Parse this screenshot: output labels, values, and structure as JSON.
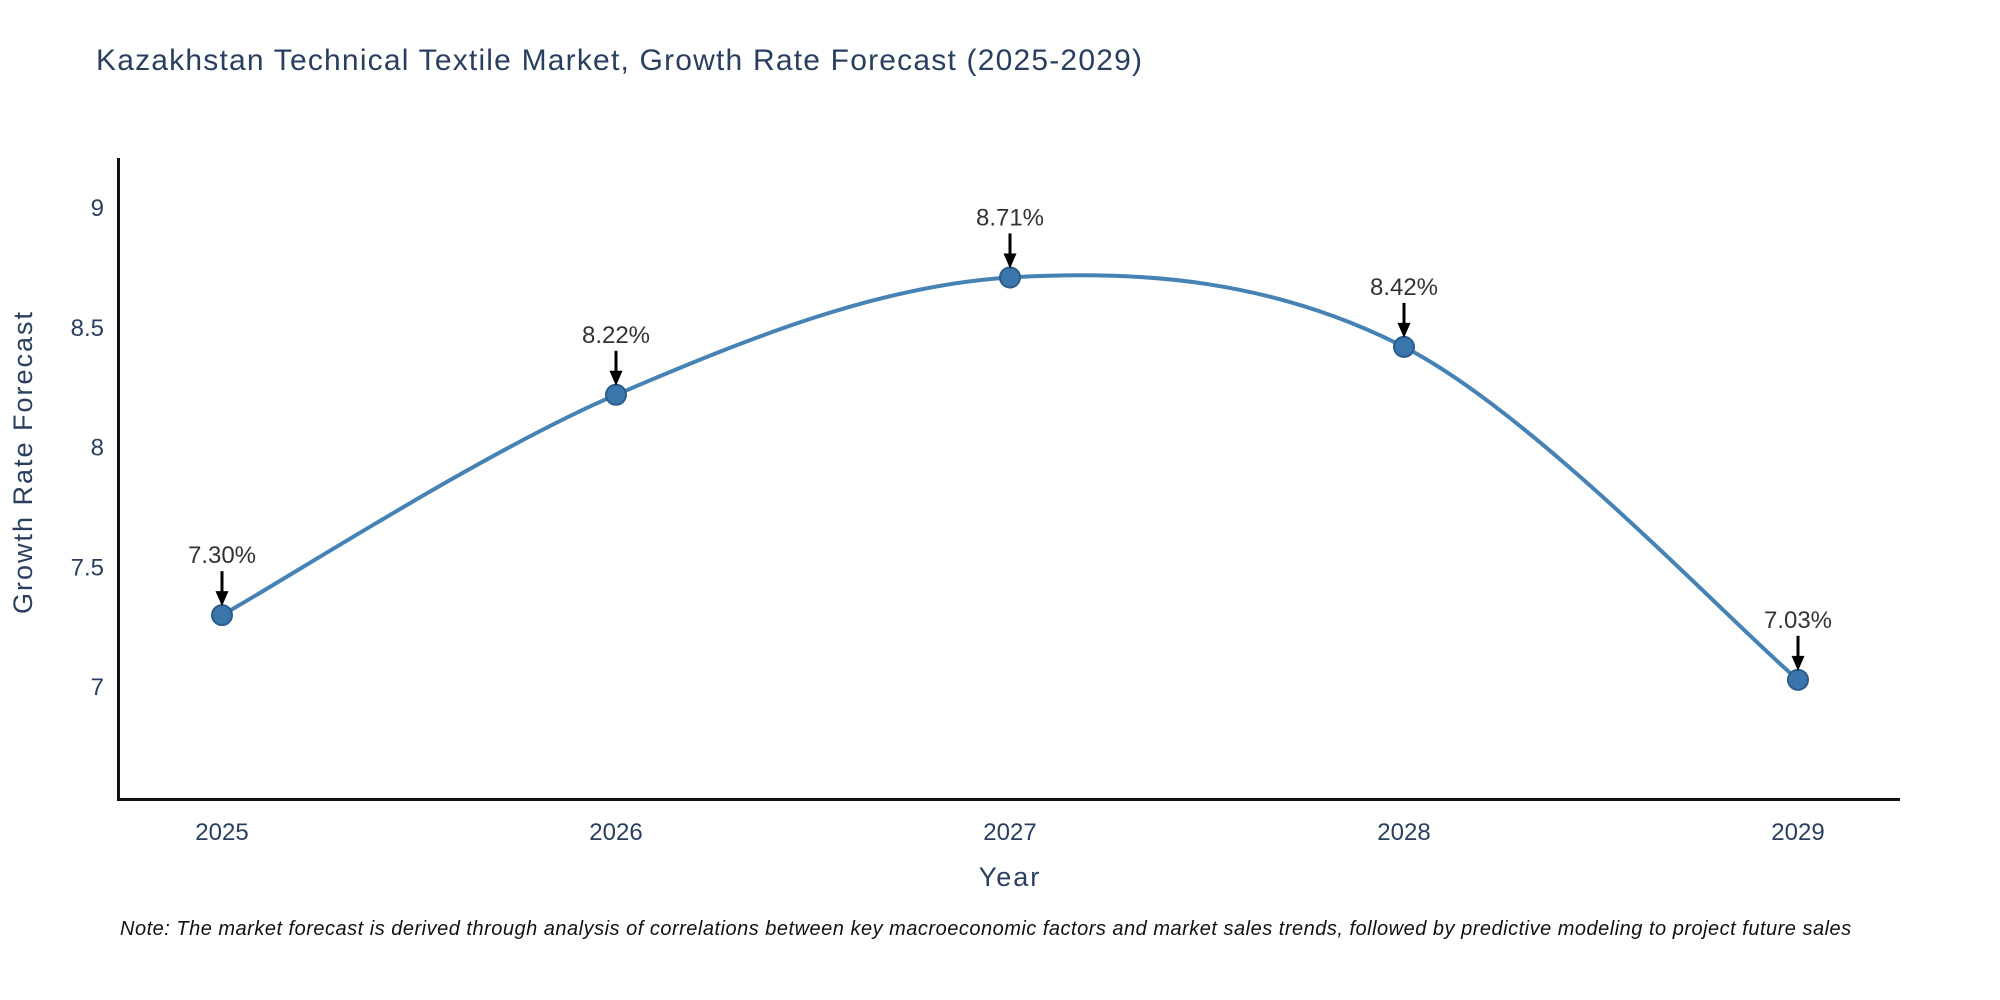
{
  "chart_data": {
    "type": "line",
    "title": "Kazakhstan Technical Textile Market, Growth Rate Forecast (2025-2029)",
    "xlabel": "Year",
    "ylabel": "Growth Rate Forecast",
    "categories": [
      "2025",
      "2026",
      "2027",
      "2028",
      "2029"
    ],
    "series": [
      {
        "name": "Growth Rate Forecast",
        "values": [
          7.3,
          8.22,
          8.71,
          8.42,
          7.03
        ],
        "point_labels": [
          "7.30%",
          "8.22%",
          "8.71%",
          "8.42%",
          "7.03%"
        ]
      }
    ],
    "yticks": [
      9,
      8.5,
      8,
      7.5,
      7
    ],
    "ylim": [
      6.5,
      9.2
    ],
    "grid": false,
    "legend_visible": false,
    "line_shape": "spline",
    "annotations_have_arrows": true,
    "colors": {
      "line": "#4682b4",
      "marker_fill": "#3a76ac",
      "marker_edge": "#2b5d8a",
      "axis": "#111111",
      "tick_text": "#2a3f5f",
      "title_text": "#2a3f5f",
      "annotation_text": "#333333",
      "arrow": "#000000",
      "note_text": "#111111",
      "background": "#ffffff"
    }
  },
  "note": "Note: The market forecast is derived through analysis of correlations between key macroeconomic factors and market sales trends, followed by predictive modeling to project future sales"
}
